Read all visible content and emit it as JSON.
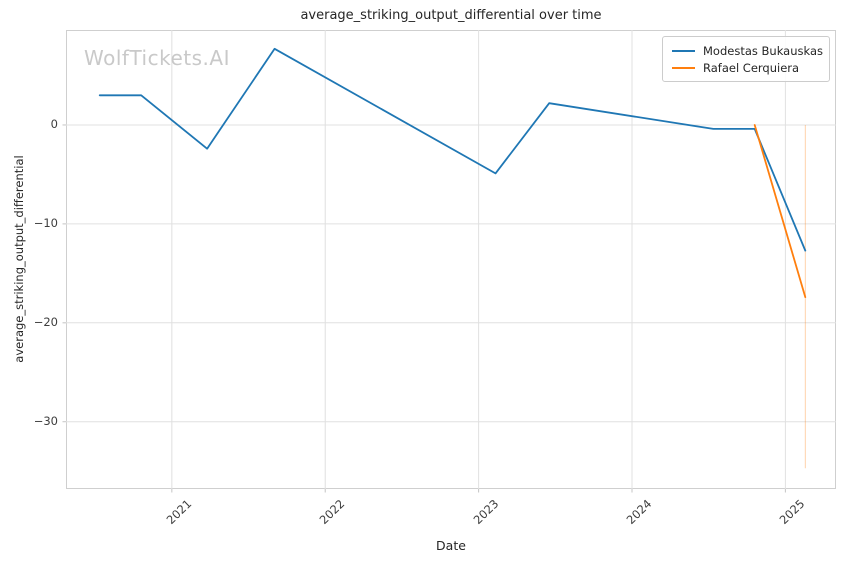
{
  "watermark": "WolfTickets.AI",
  "chart_data": {
    "type": "line",
    "title": "average_striking_output_differential over time",
    "xlabel": "Date",
    "ylabel": "average_striking_output_differential",
    "x_unit": "decimal_year",
    "xlim": [
      2020.31,
      2025.33
    ],
    "ylim": [
      -36.8,
      9.6
    ],
    "x_ticks": [
      2021,
      2022,
      2023,
      2024,
      2025
    ],
    "y_ticks": [
      0,
      -10,
      -20,
      -30
    ],
    "grid": true,
    "legend_position": "upper right",
    "series": [
      {
        "name": "Modestas Bukauskas",
        "color": "#1f77b4",
        "points": [
          {
            "x": 2020.53,
            "y": 3.0
          },
          {
            "x": 2020.8,
            "y": 3.0
          },
          {
            "x": 2021.23,
            "y": -2.4
          },
          {
            "x": 2021.67,
            "y": 7.7
          },
          {
            "x": 2023.11,
            "y": -4.9
          },
          {
            "x": 2023.46,
            "y": 2.2
          },
          {
            "x": 2024.53,
            "y": -0.4
          },
          {
            "x": 2024.8,
            "y": -0.4
          },
          {
            "x": 2025.13,
            "y": -12.7
          }
        ]
      },
      {
        "name": "Rafael Cerquiera",
        "color": "#ff7f0e",
        "points": [
          {
            "x": 2024.8,
            "y": 0.0
          },
          {
            "x": 2025.13,
            "y": -17.4
          }
        ],
        "error_bar": {
          "x": 2025.13,
          "y_top": 0.0,
          "y_bottom": -34.7
        }
      }
    ]
  },
  "style_colors": {
    "gridline": "#e0e0e0",
    "spine": "#cfcfcf",
    "tick_mark": "#c4c4c4",
    "error_bar": "rgba(255,127,14,0.35)"
  }
}
